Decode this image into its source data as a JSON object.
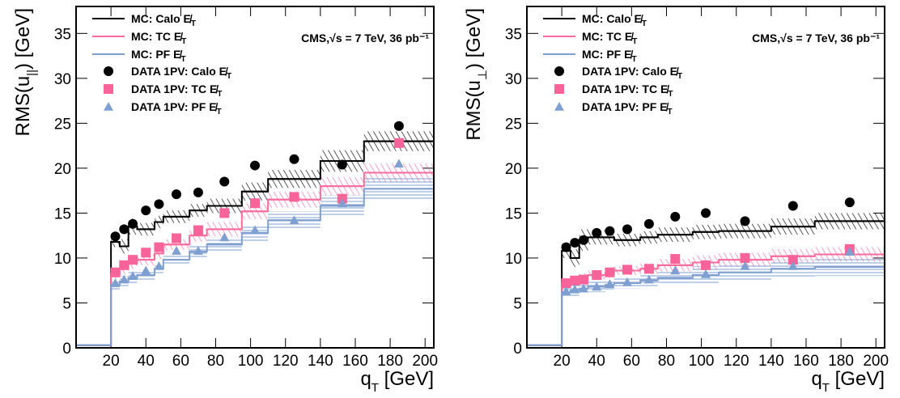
{
  "chart_data": [
    {
      "type": "step",
      "xlim": [
        0,
        205
      ],
      "ylim": [
        0,
        38
      ],
      "xticks": [
        20,
        40,
        60,
        80,
        100,
        120,
        140,
        160,
        180,
        200
      ],
      "yticks": [
        0,
        5,
        10,
        15,
        20,
        25,
        30,
        35
      ],
      "ylabel": {
        "main": "RMS(u",
        "sub": "||",
        "tail": ") [GeV]"
      },
      "xlabel": {
        "main": "q",
        "sub": "T",
        "tail": " [GeV]"
      },
      "annotation": "CMS,√s = 7 TeV, 36 pb⁻¹",
      "bins": [
        0,
        20,
        25,
        30,
        35,
        45,
        50,
        65,
        75,
        95,
        110,
        140,
        165,
        205
      ],
      "x": [
        22.5,
        27.5,
        32.5,
        40,
        47.5,
        57.5,
        70,
        85,
        102.5,
        125,
        152.5,
        185
      ],
      "mc_series": [
        {
          "name": "MC: Calo E̸T",
          "color": "#000000",
          "hatch": "diagonal",
          "values": [
            0.3,
            11.8,
            11.3,
            13.5,
            13.2,
            14,
            14.6,
            15.3,
            15.8,
            17.4,
            18.8,
            20.8,
            23
          ],
          "errors": [
            0,
            0.6,
            0.8,
            0.9,
            0.7,
            0.7,
            0.7,
            0.7,
            0.8,
            1,
            1,
            1.2,
            1.1
          ]
        },
        {
          "name": "MC: TC E̸T",
          "color": "#ff6c9c",
          "hatch": "diagonal",
          "values": [
            0.3,
            8.2,
            8.8,
            9.5,
            9.8,
            10.5,
            11.5,
            12.5,
            13.2,
            15.2,
            16.5,
            18,
            19.5
          ],
          "errors": [
            0,
            0.5,
            0.6,
            0.7,
            0.6,
            0.6,
            0.6,
            0.7,
            0.8,
            0.9,
            0.9,
            1,
            1
          ]
        },
        {
          "name": "MC: PF E̸T",
          "color": "#7f9fd0",
          "hatch": "horizontal",
          "values": [
            0.3,
            7,
            7.4,
            7.8,
            8.1,
            8.8,
            9.8,
            10.7,
            11.5,
            12.8,
            14.2,
            15.8,
            17.7
          ],
          "errors": [
            0,
            0.5,
            0.6,
            0.7,
            0.6,
            0.6,
            0.6,
            0.7,
            0.8,
            0.9,
            1,
            1.2,
            1.2
          ]
        }
      ],
      "data_series": [
        {
          "name": "DATA 1PV: Calo E̸T",
          "color": "#000000",
          "marker": "circle",
          "values": [
            12.4,
            13.2,
            13.8,
            15.3,
            16,
            17.1,
            17.3,
            18.5,
            20.3,
            21,
            20.4,
            24.7
          ]
        },
        {
          "name": "DATA 1PV: TC E̸T",
          "color": "#f8639a",
          "marker": "square",
          "values": [
            8.4,
            9.2,
            9.8,
            10.6,
            11.2,
            12.2,
            13.1,
            15,
            16.1,
            16.8,
            16.6,
            22.8
          ]
        },
        {
          "name": "DATA 1PV: PF E̸T",
          "color": "#7f9fd0",
          "marker": "triangle",
          "values": [
            7.2,
            7.6,
            8,
            8.6,
            9.1,
            10.8,
            10.8,
            12.3,
            13.1,
            14.2,
            16.1,
            20.5
          ]
        }
      ]
    },
    {
      "type": "step",
      "xlim": [
        0,
        205
      ],
      "ylim": [
        0,
        38
      ],
      "xticks": [
        20,
        40,
        60,
        80,
        100,
        120,
        140,
        160,
        180,
        200
      ],
      "yticks": [
        0,
        5,
        10,
        15,
        20,
        25,
        30,
        35
      ],
      "ylabel": {
        "main": "RMS(u",
        "sub": "⊥",
        "tail": ") [GeV]"
      },
      "xlabel": {
        "main": "q",
        "sub": "T",
        "tail": " [GeV]"
      },
      "annotation": "CMS,√s = 7 TeV, 36 pb⁻¹",
      "bins": [
        0,
        20,
        25,
        30,
        35,
        45,
        50,
        65,
        75,
        95,
        110,
        140,
        165,
        205
      ],
      "x": [
        22.5,
        27.5,
        32.5,
        40,
        47.5,
        57.5,
        70,
        85,
        102.5,
        125,
        152.5,
        185
      ],
      "mc_series": [
        {
          "name": "MC: Calo E̸T",
          "color": "#000000",
          "hatch": "diagonal",
          "values": [
            0.3,
            10.8,
            10,
            12,
            12.3,
            12.3,
            12,
            12.3,
            12.6,
            12.9,
            13,
            13.5,
            14.1
          ],
          "errors": [
            0,
            0.8,
            1,
            1.2,
            0.8,
            0.8,
            0.7,
            0.7,
            0.8,
            0.8,
            0.8,
            0.9,
            0.9
          ]
        },
        {
          "name": "MC: TC E̸T",
          "color": "#ff6c9c",
          "hatch": "diagonal",
          "values": [
            0.3,
            7.2,
            7.4,
            7.7,
            8.1,
            8.3,
            8.6,
            8.8,
            9.2,
            9.5,
            9.8,
            10.2,
            10.4
          ],
          "errors": [
            0,
            0.5,
            0.6,
            0.6,
            0.5,
            0.5,
            0.5,
            0.6,
            0.7,
            0.8,
            0.8,
            0.8,
            0.8
          ]
        },
        {
          "name": "MC: PF E̸T",
          "color": "#7f9fd0",
          "hatch": "horizontal",
          "values": [
            0.3,
            6.2,
            6.4,
            6.6,
            6.8,
            7,
            7.2,
            7.5,
            7.8,
            8.1,
            8.4,
            8.8,
            9
          ],
          "errors": [
            0,
            0.5,
            0.6,
            0.7,
            0.6,
            0.6,
            0.6,
            0.7,
            0.8,
            1,
            1,
            1,
            1
          ]
        }
      ],
      "data_series": [
        {
          "name": "DATA 1PV: Calo E̸T",
          "color": "#000000",
          "marker": "circle",
          "values": [
            11.2,
            11.7,
            12,
            12.8,
            13,
            13.2,
            13.8,
            14.6,
            15,
            14.1,
            15.8,
            16.2
          ]
        },
        {
          "name": "DATA 1PV: TC E̸T",
          "color": "#f8639a",
          "marker": "square",
          "values": [
            7.2,
            7.5,
            7.6,
            8.1,
            8.4,
            8.7,
            8.8,
            9.9,
            9.2,
            10,
            9.8,
            11
          ]
        },
        {
          "name": "DATA 1PV: PF E̸T",
          "color": "#7f9fd0",
          "marker": "triangle",
          "values": [
            6.3,
            6.5,
            6.6,
            6.8,
            7.1,
            7.3,
            7.6,
            8.6,
            8.2,
            9.1,
            9.1,
            10.7
          ]
        }
      ]
    }
  ]
}
